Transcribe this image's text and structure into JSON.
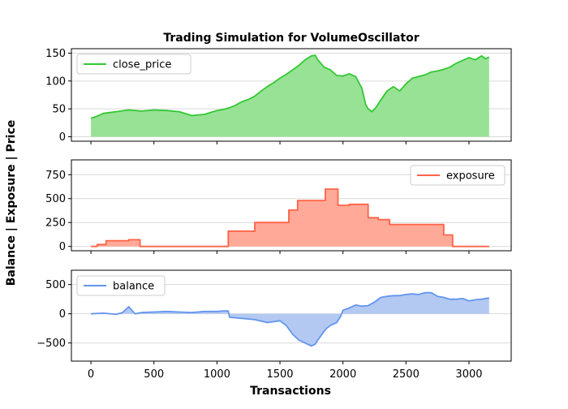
{
  "chart_data": {
    "type": "area",
    "title": "Trading Simulation for VolumeOscillator",
    "xlabel": "Transactions",
    "ylabel": "Balance | Exposure | Price",
    "xlim": [
      -155,
      3335
    ],
    "x_ticks": [
      0,
      500,
      1000,
      1500,
      2000,
      2500,
      3000
    ],
    "grid": "horizontal",
    "panels": [
      {
        "name": "close_price",
        "legend": "close_price",
        "legend_position": "top-left",
        "color": "#32c832",
        "fill_color": "#98e296",
        "ylim": [
          -8,
          158
        ],
        "y_ticks": [
          0,
          50,
          100,
          150
        ],
        "x": [
          0,
          50,
          100,
          200,
          300,
          400,
          500,
          600,
          700,
          800,
          900,
          1000,
          1050,
          1100,
          1150,
          1200,
          1250,
          1300,
          1350,
          1400,
          1450,
          1500,
          1550,
          1600,
          1650,
          1700,
          1750,
          1780,
          1800,
          1850,
          1900,
          1950,
          2000,
          2050,
          2100,
          2150,
          2180,
          2200,
          2230,
          2260,
          2300,
          2350,
          2400,
          2450,
          2500,
          2550,
          2600,
          2650,
          2700,
          2750,
          2800,
          2850,
          2900,
          2950,
          3000,
          3050,
          3100,
          3130,
          3160
        ],
        "values": [
          33,
          37,
          42,
          45,
          48,
          46,
          48,
          47,
          45,
          38,
          40,
          47,
          49,
          52,
          57,
          63,
          67,
          73,
          82,
          90,
          97,
          105,
          112,
          120,
          128,
          138,
          145,
          146,
          138,
          125,
          120,
          110,
          109,
          113,
          108,
          87,
          58,
          50,
          45,
          52,
          66,
          82,
          90,
          82,
          95,
          105,
          108,
          111,
          116,
          118,
          121,
          125,
          132,
          137,
          142,
          138,
          145,
          140,
          143
        ]
      },
      {
        "name": "exposure",
        "legend": "exposure",
        "legend_position": "top-right",
        "color": "#ff6347",
        "fill_color": "#ffaa99",
        "ylim": [
          -45,
          905
        ],
        "y_ticks": [
          0,
          250,
          500,
          750
        ],
        "x": [
          0,
          50,
          50,
          120,
          120,
          300,
          300,
          390,
          390,
          420,
          420,
          1090,
          1090,
          1300,
          1300,
          1570,
          1570,
          1640,
          1640,
          1770,
          1770,
          1860,
          1860,
          1960,
          1960,
          2050,
          2050,
          2200,
          2200,
          2280,
          2280,
          2370,
          2370,
          2490,
          2490,
          2800,
          2800,
          2870,
          2870,
          3000,
          3000,
          3160
        ],
        "values": [
          0,
          0,
          20,
          20,
          60,
          60,
          70,
          70,
          0,
          0,
          0,
          0,
          160,
          160,
          250,
          250,
          380,
          380,
          480,
          480,
          480,
          480,
          600,
          600,
          430,
          430,
          440,
          440,
          300,
          300,
          280,
          280,
          230,
          230,
          230,
          230,
          120,
          120,
          0,
          0,
          0,
          0
        ]
      },
      {
        "name": "balance",
        "legend": "balance",
        "legend_position": "top-left",
        "color": "#6495ed",
        "fill_color": "#b3c9f2",
        "ylim": [
          -810,
          745
        ],
        "y_ticks": [
          -500,
          0,
          500
        ],
        "x": [
          0,
          100,
          200,
          250,
          300,
          350,
          400,
          500,
          600,
          700,
          800,
          900,
          1000,
          1050,
          1090,
          1100,
          1200,
          1300,
          1400,
          1500,
          1550,
          1600,
          1650,
          1700,
          1750,
          1780,
          1800,
          1850,
          1870,
          1900,
          1950,
          1980,
          2000,
          2050,
          2100,
          2150,
          2200,
          2250,
          2300,
          2350,
          2400,
          2450,
          2500,
          2550,
          2600,
          2650,
          2700,
          2750,
          2800,
          2850,
          2900,
          2950,
          3000,
          3050,
          3100,
          3160
        ],
        "values": [
          0,
          10,
          -10,
          20,
          120,
          0,
          20,
          30,
          40,
          30,
          20,
          40,
          40,
          50,
          50,
          -60,
          -80,
          -100,
          -150,
          -120,
          -200,
          -350,
          -450,
          -500,
          -550,
          -520,
          -450,
          -300,
          -250,
          -200,
          -150,
          -50,
          60,
          100,
          150,
          130,
          140,
          200,
          280,
          300,
          310,
          310,
          330,
          340,
          330,
          360,
          360,
          300,
          280,
          250,
          250,
          260,
          220,
          240,
          250,
          270
        ]
      }
    ]
  }
}
